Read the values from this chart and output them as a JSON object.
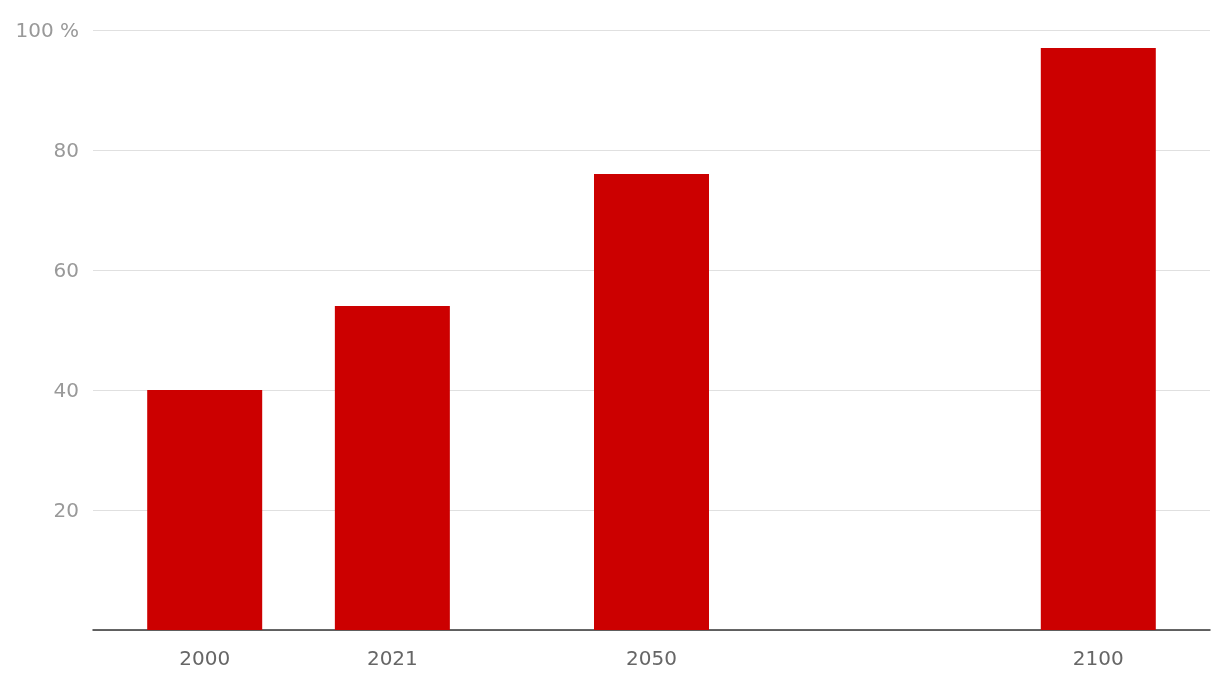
{
  "chart_data": {
    "type": "bar",
    "x": [
      2000,
      2021,
      2050,
      2100
    ],
    "values": [
      40,
      54,
      76,
      97
    ],
    "color": "#cc0000",
    "xlim": [
      1987.5,
      2112.5
    ],
    "xticks": [
      2000,
      2021,
      2050,
      2100
    ],
    "ylim": [
      0,
      100
    ],
    "yticks": [
      {
        "value": 0,
        "label": null
      },
      20,
      40,
      60,
      80,
      {
        "value": 100,
        "label": "100 %"
      }
    ],
    "grid": "y"
  }
}
